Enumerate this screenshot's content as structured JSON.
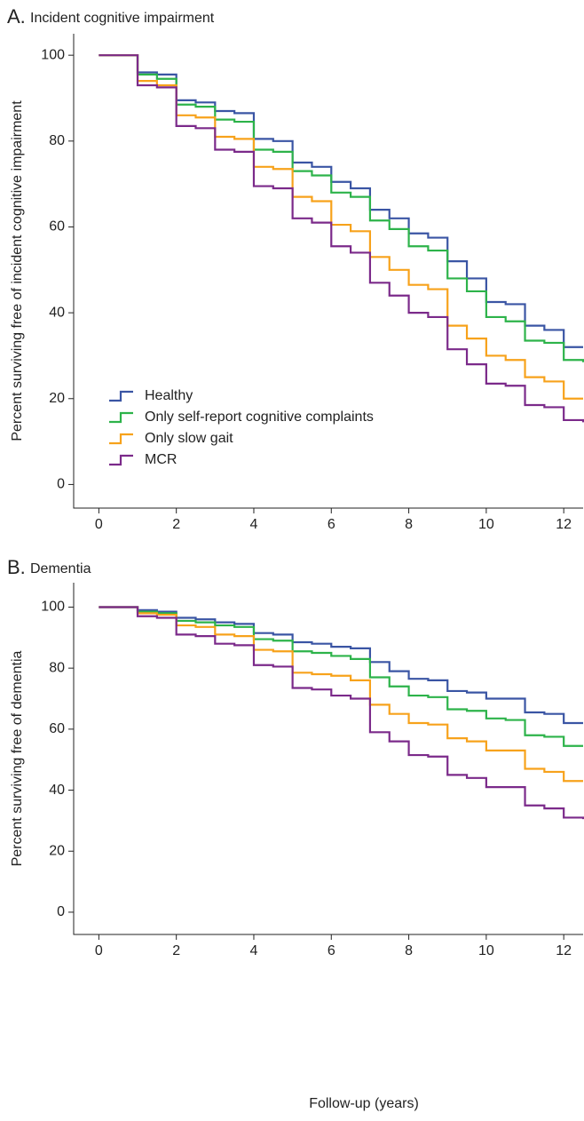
{
  "chart_data": [
    {
      "type": "step",
      "panel_label": "A.",
      "title": "Incident cognitive impairment",
      "ylabel": "Percent surviving free of incident cognitive impairment",
      "x": [
        0,
        1,
        1.5,
        2,
        2.5,
        3,
        3.5,
        4,
        4.5,
        5,
        5.5,
        6,
        6.5,
        7,
        7.5,
        8,
        8.5,
        9,
        9.5,
        10,
        10.5,
        11,
        11.5,
        12,
        12.5
      ],
      "xlim": [
        -0.65,
        12.5
      ],
      "xticks": [
        0,
        2,
        4,
        6,
        8,
        10,
        12
      ],
      "ylim": [
        -5.5,
        105
      ],
      "yticks": [
        0,
        20,
        40,
        60,
        80,
        100
      ],
      "legend": "lower left",
      "series": [
        {
          "name": "Healthy",
          "color": "#3a55a4",
          "values": [
            100,
            96,
            95.5,
            89.5,
            89,
            87,
            86.5,
            80.5,
            80,
            75,
            74,
            70.5,
            69,
            64,
            62,
            58.5,
            57.5,
            52,
            48,
            42.5,
            42,
            37,
            36,
            32,
            32
          ]
        },
        {
          "name": "Only self-report cognitive complaints",
          "color": "#2db34a",
          "values": [
            100,
            95.5,
            94.5,
            88.5,
            88,
            85,
            84.5,
            78,
            77.5,
            73,
            72,
            68,
            67,
            61.5,
            59.5,
            55.5,
            54.5,
            48,
            45,
            39,
            38,
            33.5,
            33,
            29,
            28.5
          ]
        },
        {
          "name": "Only slow gait",
          "color": "#f7a21b",
          "values": [
            100,
            94,
            93,
            86,
            85.5,
            81,
            80.5,
            74,
            73.5,
            67,
            66,
            60.5,
            59,
            53,
            50,
            46.5,
            45.5,
            37,
            34,
            30,
            29,
            25,
            24,
            20,
            20
          ]
        },
        {
          "name": "MCR",
          "color": "#7b2a8a",
          "values": [
            100,
            93,
            92.5,
            83.5,
            83,
            78,
            77.5,
            69.5,
            69,
            62,
            61,
            55.5,
            54,
            47,
            44,
            40,
            39,
            31.5,
            28,
            23.5,
            23,
            18.5,
            18,
            15,
            14.5
          ]
        }
      ]
    },
    {
      "type": "step",
      "panel_label": "B.",
      "title": "Dementia",
      "ylabel": "Percent surviving free of dementia",
      "xlabel": "Follow-up (years)",
      "x": [
        0,
        1,
        1.5,
        2,
        2.5,
        3,
        3.5,
        4,
        4.5,
        5,
        5.5,
        6,
        6.5,
        7,
        7.5,
        8,
        8.5,
        9,
        9.5,
        10,
        10.5,
        11,
        11.5,
        12,
        12.5
      ],
      "xlim": [
        -0.65,
        12.5
      ],
      "xticks": [
        0,
        2,
        4,
        6,
        8,
        10,
        12
      ],
      "ylim": [
        -7.3,
        108
      ],
      "yticks": [
        0,
        20,
        40,
        60,
        80,
        100
      ],
      "series": [
        {
          "name": "Healthy",
          "color": "#3a55a4",
          "values": [
            100,
            99,
            98.5,
            96.5,
            96,
            95,
            94.5,
            91.5,
            91,
            88.5,
            88,
            87,
            86.5,
            82,
            79,
            76.5,
            76,
            72.5,
            72,
            70,
            70,
            65.5,
            65,
            62,
            62
          ]
        },
        {
          "name": "Only self-report cognitive complaints",
          "color": "#2db34a",
          "values": [
            100,
            98.5,
            98,
            95.5,
            95,
            94,
            93.5,
            89.5,
            89,
            85.5,
            85,
            84,
            83,
            77,
            74,
            71,
            70.5,
            66.5,
            66,
            63.5,
            63,
            58,
            57.5,
            54.5,
            54.5
          ]
        },
        {
          "name": "Only slow gait",
          "color": "#f7a21b",
          "values": [
            100,
            98,
            97.5,
            94,
            93.5,
            91,
            90.5,
            86,
            85.5,
            78.5,
            78,
            77.5,
            76,
            68,
            65,
            62,
            61.5,
            57,
            56,
            53,
            53,
            47,
            46,
            43,
            43
          ]
        },
        {
          "name": "MCR",
          "color": "#7b2a8a",
          "values": [
            100,
            97,
            96.5,
            91,
            90.5,
            88,
            87.5,
            81,
            80.5,
            73.5,
            73,
            71,
            70,
            59,
            56,
            51.5,
            51,
            45,
            44,
            41,
            41,
            35,
            34,
            31,
            30.5
          ]
        }
      ]
    }
  ]
}
